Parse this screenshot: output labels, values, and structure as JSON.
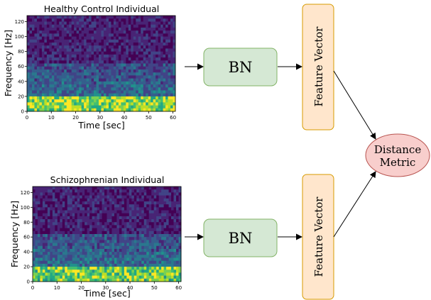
{
  "spectrograms": [
    {
      "title": "Healthy Control Individual",
      "ylabel": "Frequency [Hz]",
      "xlabel": "Time [sec]",
      "xticks": [
        "0",
        "10",
        "20",
        "30",
        "40",
        "50",
        "60"
      ],
      "yticks": [
        "0",
        "20",
        "40",
        "60",
        "80",
        "100",
        "120"
      ]
    },
    {
      "title": "Schizophrenian Individual",
      "ylabel": "Frequency [Hz]",
      "xlabel": "Time [sec]",
      "xticks": [
        "0",
        "10",
        "20",
        "30",
        "40",
        "50",
        "60"
      ],
      "yticks": [
        "0",
        "20",
        "40",
        "60",
        "80",
        "100",
        "120"
      ]
    }
  ],
  "bn_blocks": [
    {
      "label": "BN"
    },
    {
      "label": "BN"
    }
  ],
  "feature_vectors": [
    {
      "label": "Feature Vector"
    },
    {
      "label": "Feature Vector"
    }
  ],
  "distance_metric": {
    "line1": "Distance",
    "line2": "Metric"
  },
  "colors": {
    "bn_fill": "#d5e8d4",
    "bn_stroke": "#82b366",
    "fv_fill": "#ffe6cc",
    "fv_stroke": "#d79b00",
    "dm_fill": "#f8cecc",
    "dm_stroke": "#b85450",
    "viridis_low": "#440154",
    "viridis_high": "#fde725"
  }
}
